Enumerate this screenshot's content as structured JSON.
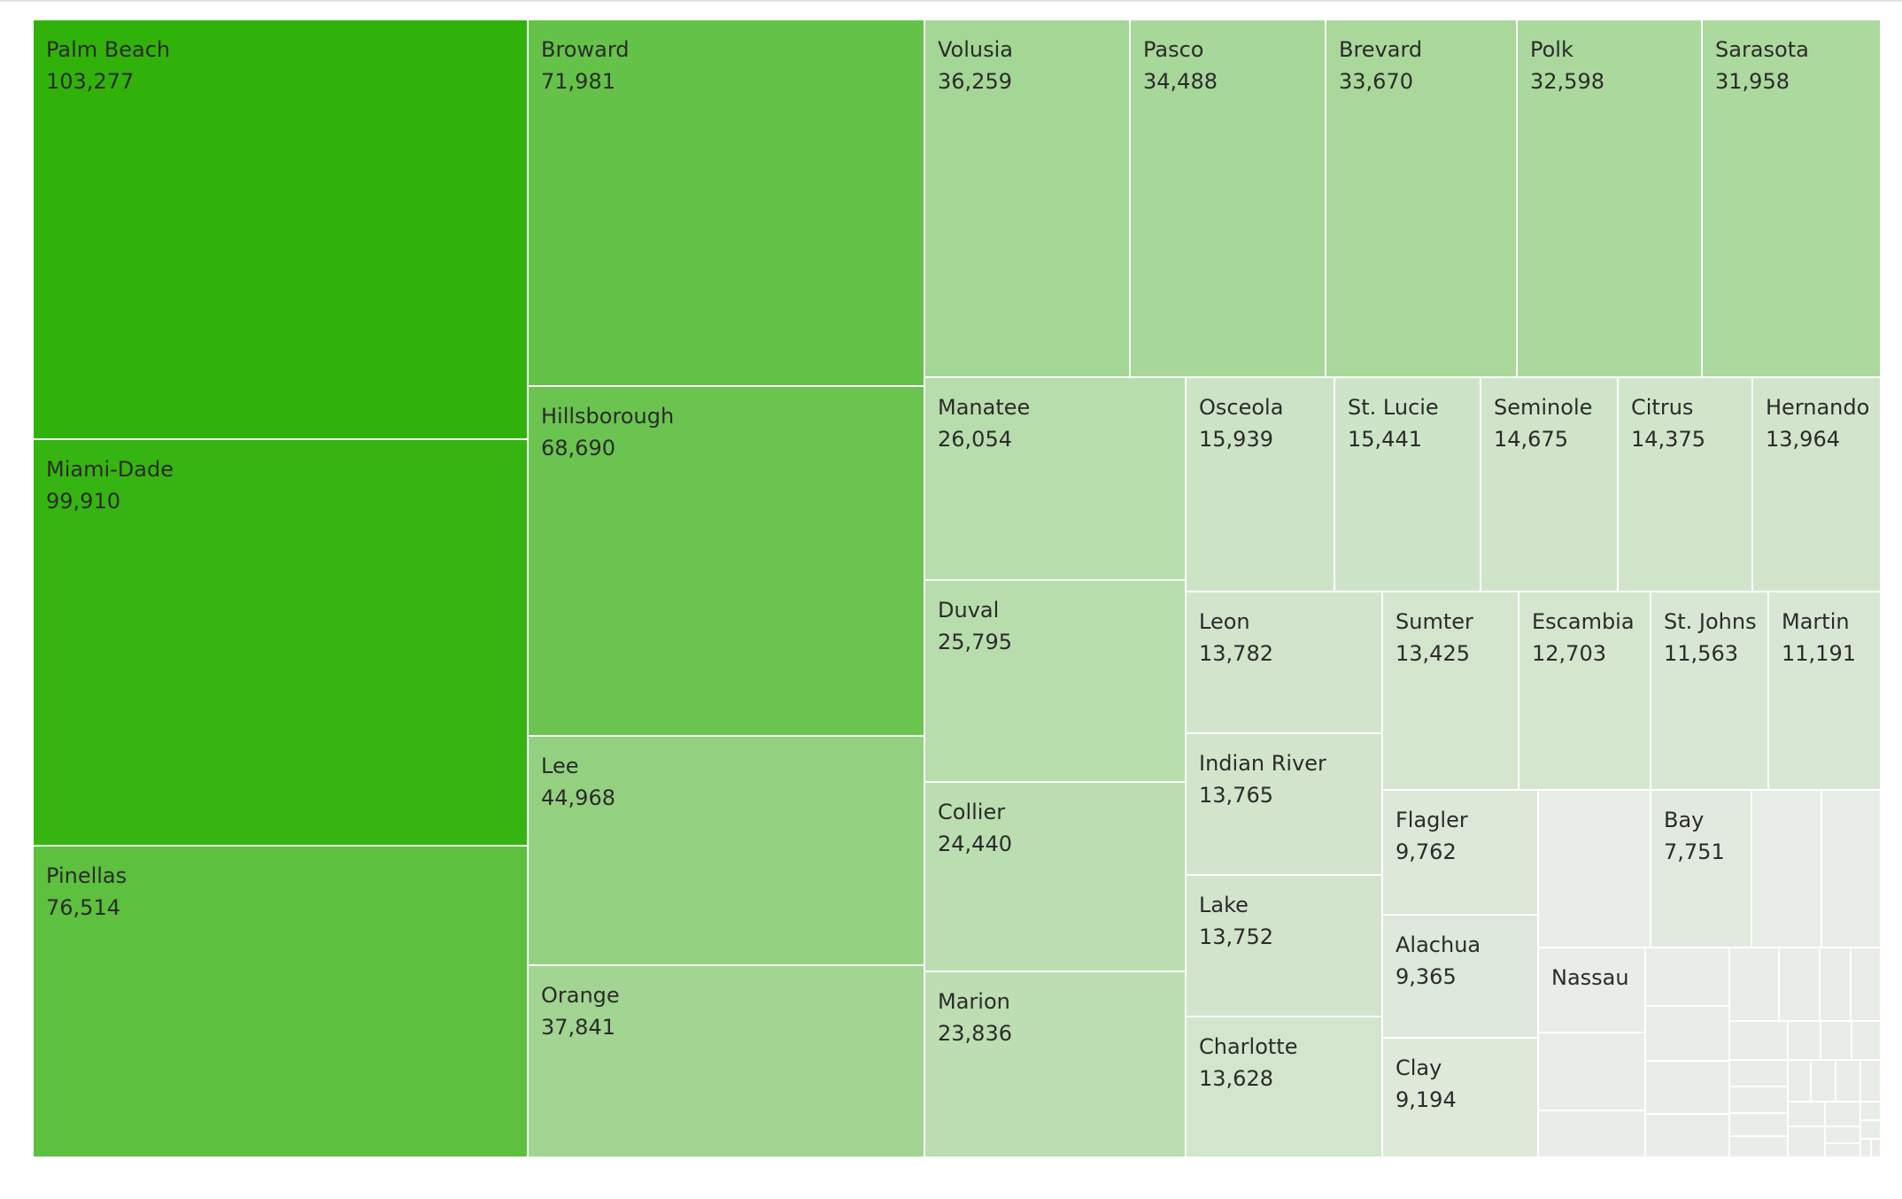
{
  "chart_data": {
    "type": "treemap",
    "color_scale": {
      "low": "#e5ebe3",
      "high": "#31b20b"
    },
    "cells": [
      {
        "name": "Palm Beach",
        "value": 103277
      },
      {
        "name": "Miami-Dade",
        "value": 99910
      },
      {
        "name": "Pinellas",
        "value": 76514
      },
      {
        "name": "Broward",
        "value": 71981
      },
      {
        "name": "Hillsborough",
        "value": 68690
      },
      {
        "name": "Lee",
        "value": 44968
      },
      {
        "name": "Orange",
        "value": 37841
      },
      {
        "name": "Volusia",
        "value": 36259
      },
      {
        "name": "Pasco",
        "value": 34488
      },
      {
        "name": "Brevard",
        "value": 33670
      },
      {
        "name": "Polk",
        "value": 32598
      },
      {
        "name": "Sarasota",
        "value": 31958
      },
      {
        "name": "Manatee",
        "value": 26054
      },
      {
        "name": "Duval",
        "value": 25795
      },
      {
        "name": "Collier",
        "value": 24440
      },
      {
        "name": "Marion",
        "value": 23836
      },
      {
        "name": "Osceola",
        "value": 15939
      },
      {
        "name": "St. Lucie",
        "value": 15441
      },
      {
        "name": "Seminole",
        "value": 14675
      },
      {
        "name": "Citrus",
        "value": 14375
      },
      {
        "name": "Hernando",
        "value": 13964
      },
      {
        "name": "Leon",
        "value": 13782
      },
      {
        "name": "Indian River",
        "value": 13765
      },
      {
        "name": "Lake",
        "value": 13752
      },
      {
        "name": "Charlotte",
        "value": 13628
      },
      {
        "name": "Sumter",
        "value": 13425
      },
      {
        "name": "Escambia",
        "value": 12703
      },
      {
        "name": "St. Johns",
        "value": 11563
      },
      {
        "name": "Martin",
        "value": 11191
      },
      {
        "name": "Flagler",
        "value": 9762
      },
      {
        "name": "Alachua",
        "value": 9365
      },
      {
        "name": "Clay",
        "value": 9194
      },
      {
        "name": "Bay",
        "value": 7751
      },
      {
        "name": "Nassau",
        "value": null
      },
      {
        "name": "",
        "value": null
      },
      {
        "name": "",
        "value": null
      },
      {
        "name": "",
        "value": null
      },
      {
        "name": "",
        "value": null
      },
      {
        "name": "",
        "value": null
      },
      {
        "name": "",
        "value": null
      },
      {
        "name": "",
        "value": null
      },
      {
        "name": "",
        "value": null
      },
      {
        "name": "",
        "value": null
      },
      {
        "name": "",
        "value": null
      },
      {
        "name": "",
        "value": null
      },
      {
        "name": "",
        "value": null
      },
      {
        "name": "",
        "value": null
      },
      {
        "name": "",
        "value": null
      },
      {
        "name": "",
        "value": null
      },
      {
        "name": "",
        "value": null
      },
      {
        "name": "",
        "value": null
      },
      {
        "name": "",
        "value": null
      },
      {
        "name": "",
        "value": null
      },
      {
        "name": "",
        "value": null
      },
      {
        "name": "",
        "value": null
      },
      {
        "name": "",
        "value": null
      },
      {
        "name": "",
        "value": null
      },
      {
        "name": "",
        "value": null
      },
      {
        "name": "",
        "value": null
      },
      {
        "name": "",
        "value": null
      },
      {
        "name": "",
        "value": null
      },
      {
        "name": "",
        "value": null
      }
    ]
  }
}
